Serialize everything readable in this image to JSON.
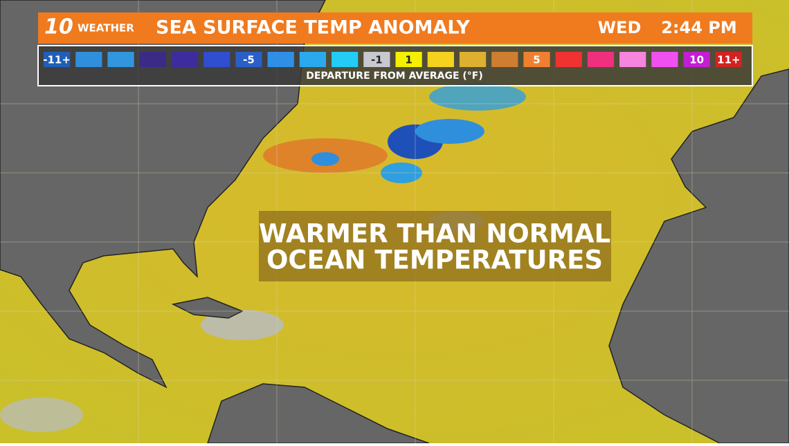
{
  "header": {
    "logo_number": "10",
    "logo_word": "WEATHER",
    "title": "SEA SURFACE TEMP ANOMALY",
    "day": "WED",
    "time": "2:44 PM"
  },
  "legend": {
    "caption": "DEPARTURE FROM AVERAGE (°F)",
    "swatches": [
      {
        "color": "#1f5fb8",
        "label": "-11+"
      },
      {
        "color": "#2f8fdc"
      },
      {
        "color": "#3196de"
      },
      {
        "color": "#3b2a86"
      },
      {
        "color": "#3d2c9e"
      },
      {
        "color": "#2f4fd0"
      },
      {
        "color": "#2a5fc8",
        "label": "-5"
      },
      {
        "color": "#2f8fe6"
      },
      {
        "color": "#2aa9ef"
      },
      {
        "color": "#24ccf5"
      },
      {
        "color": "#c8c8d0",
        "label": "-1"
      },
      {
        "color": "#f5ef00",
        "label": "1"
      },
      {
        "color": "#f5d21e"
      },
      {
        "color": "#deb030"
      },
      {
        "color": "#cf7d30"
      },
      {
        "color": "#f08030",
        "label": "5"
      },
      {
        "color": "#f03232"
      },
      {
        "color": "#f0307e"
      },
      {
        "color": "#f585de"
      },
      {
        "color": "#f050f0"
      },
      {
        "color": "#c21fd2",
        "label": "10"
      },
      {
        "color": "#d22222",
        "label": "11+"
      }
    ]
  },
  "overlay": {
    "line1": "WARMER THAN NORMAL",
    "line2": "OCEAN TEMPERATURES"
  }
}
